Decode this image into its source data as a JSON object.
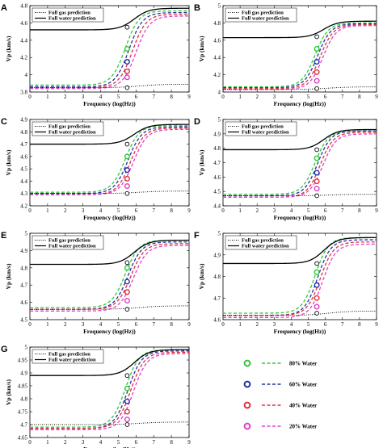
{
  "shared_legend": {
    "items": [
      {
        "label": "80% Water",
        "color": "#2dc83a"
      },
      {
        "label": "60% Water",
        "color": "#2430a8"
      },
      {
        "label": "40% Water",
        "color": "#e0303a"
      },
      {
        "label": "20% Water",
        "color": "#e040c8"
      }
    ]
  },
  "chart_data": [
    {
      "type": "line",
      "panel": "A",
      "xlabel": "Frequency (log(Hz))",
      "ylabel": "V_p (km/s)",
      "xlim": [
        0,
        9
      ],
      "ylim": [
        3.8,
        4.8
      ],
      "xticks": [
        "0",
        "1",
        "2",
        "3",
        "4",
        "5",
        "6",
        "7",
        "8",
        "9"
      ],
      "yticks": [
        "3.8",
        "4",
        "4.2",
        "4.4",
        "4.6",
        "4.8"
      ],
      "legend": [
        "Full gas prediction",
        "Full water prediction"
      ],
      "gas": {
        "low": 3.85,
        "high": 3.89
      },
      "water": {
        "low": 4.52,
        "high": 4.77
      },
      "series": [
        {
          "name": "80% Water",
          "low": 3.88,
          "high": 4.74,
          "mid": 5.4,
          "marker_y": 4.3
        },
        {
          "name": "60% Water",
          "low": 3.86,
          "high": 4.72,
          "mid": 5.6,
          "marker_y": 4.15
        },
        {
          "name": "40% Water",
          "low": 3.85,
          "high": 4.7,
          "mid": 5.8,
          "marker_y": 4.04
        },
        {
          "name": "20% Water",
          "low": 3.84,
          "high": 4.68,
          "mid": 6.0,
          "marker_y": 3.97
        }
      ],
      "markers_x": 5.5,
      "marker_gas": 3.85,
      "marker_water": 4.55
    },
    {
      "type": "line",
      "panel": "B",
      "xlabel": "Frequency (log(Hz))",
      "ylabel": "V_p (km/s)",
      "xlim": [
        0,
        9
      ],
      "ylim": [
        4,
        5
      ],
      "xticks": [
        "0",
        "1",
        "2",
        "3",
        "4",
        "5",
        "6",
        "7",
        "8",
        "9"
      ],
      "yticks": [
        "4",
        "4.2",
        "4.4",
        "4.6",
        "4.8",
        "5"
      ],
      "legend": [
        "Full gas prediction",
        "Full water prediction"
      ],
      "gas": {
        "low": 4.03,
        "high": 4.06
      },
      "water": {
        "low": 4.63,
        "high": 4.82
      },
      "series": [
        {
          "name": "80% Water",
          "low": 4.06,
          "high": 4.8,
          "mid": 5.4,
          "marker_y": 4.5
        },
        {
          "name": "60% Water",
          "low": 4.05,
          "high": 4.79,
          "mid": 5.55,
          "marker_y": 4.35
        },
        {
          "name": "40% Water",
          "low": 4.04,
          "high": 4.78,
          "mid": 5.7,
          "marker_y": 4.23
        },
        {
          "name": "20% Water",
          "low": 4.03,
          "high": 4.77,
          "mid": 5.85,
          "marker_y": 4.13
        }
      ],
      "markers_x": 5.5,
      "marker_gas": 4.04,
      "marker_water": 4.64
    },
    {
      "type": "line",
      "panel": "C",
      "xlabel": "Frequency (log(Hz))",
      "ylabel": "V_p (km/s)",
      "xlim": [
        0,
        9
      ],
      "ylim": [
        4.2,
        4.9
      ],
      "xticks": [
        "0",
        "1",
        "2",
        "3",
        "4",
        "5",
        "6",
        "7",
        "8",
        "9"
      ],
      "yticks": [
        "4.2",
        "4.3",
        "4.4",
        "4.5",
        "4.6",
        "4.7",
        "4.8",
        "4.9"
      ],
      "legend": [
        "Full gas prediction",
        "Full water prediction"
      ],
      "gas": {
        "low": 4.3,
        "high": 4.32
      },
      "water": {
        "low": 4.7,
        "high": 4.86
      },
      "series": [
        {
          "name": "80% Water",
          "low": 4.31,
          "high": 4.85,
          "mid": 5.4,
          "marker_y": 4.6
        },
        {
          "name": "60% Water",
          "low": 4.3,
          "high": 4.84,
          "mid": 5.55,
          "marker_y": 4.49
        },
        {
          "name": "40% Water",
          "low": 4.29,
          "high": 4.83,
          "mid": 5.7,
          "marker_y": 4.42
        },
        {
          "name": "20% Water",
          "low": 4.29,
          "high": 4.82,
          "mid": 5.85,
          "marker_y": 4.36
        }
      ],
      "markers_x": 5.5,
      "marker_gas": 4.3,
      "marker_water": 4.7
    },
    {
      "type": "line",
      "panel": "D",
      "xlabel": "Frequency (log(Hz))",
      "ylabel": "V_p (km/s)",
      "xlim": [
        0,
        9
      ],
      "ylim": [
        4.4,
        5
      ],
      "xticks": [
        "0",
        "1",
        "2",
        "3",
        "4",
        "5",
        "6",
        "7",
        "8",
        "9"
      ],
      "yticks": [
        "4.4",
        "4.5",
        "4.6",
        "4.7",
        "4.8",
        "4.9",
        "5"
      ],
      "legend": [
        "Full gas prediction",
        "Full water prediction"
      ],
      "gas": {
        "low": 4.47,
        "high": 4.48
      },
      "water": {
        "low": 4.79,
        "high": 4.93
      },
      "series": [
        {
          "name": "80% Water",
          "low": 4.48,
          "high": 4.92,
          "mid": 5.4,
          "marker_y": 4.73
        },
        {
          "name": "60% Water",
          "low": 4.47,
          "high": 4.92,
          "mid": 5.55,
          "marker_y": 4.63
        },
        {
          "name": "40% Water",
          "low": 4.46,
          "high": 4.91,
          "mid": 5.7,
          "marker_y": 4.57
        },
        {
          "name": "20% Water",
          "low": 4.46,
          "high": 4.9,
          "mid": 5.85,
          "marker_y": 4.52
        }
      ],
      "markers_x": 5.5,
      "marker_gas": 4.47,
      "marker_water": 4.79
    },
    {
      "type": "line",
      "panel": "E",
      "xlabel": "Frequency (log(Hz))",
      "ylabel": "V_p (km/s)",
      "xlim": [
        0,
        9
      ],
      "ylim": [
        4.5,
        5
      ],
      "xticks": [
        "0",
        "1",
        "2",
        "3",
        "4",
        "5",
        "6",
        "7",
        "8",
        "9"
      ],
      "yticks": [
        "4.5",
        "4.6",
        "4.7",
        "4.8",
        "4.9",
        "5"
      ],
      "legend": [
        "Full gas prediction",
        "Full water prediction"
      ],
      "gas": {
        "low": 4.56,
        "high": 4.58
      },
      "water": {
        "low": 4.82,
        "high": 4.96
      },
      "series": [
        {
          "name": "80% Water",
          "low": 4.57,
          "high": 4.96,
          "mid": 5.4,
          "marker_y": 4.8
        },
        {
          "name": "60% Water",
          "low": 4.56,
          "high": 4.95,
          "mid": 5.55,
          "marker_y": 4.72
        },
        {
          "name": "40% Water",
          "low": 4.56,
          "high": 4.94,
          "mid": 5.7,
          "marker_y": 4.66
        },
        {
          "name": "20% Water",
          "low": 4.55,
          "high": 4.93,
          "mid": 5.85,
          "marker_y": 4.61
        }
      ],
      "markers_x": 5.5,
      "marker_gas": 4.56,
      "marker_water": 4.83
    },
    {
      "type": "line",
      "panel": "F",
      "xlabel": "Frequency (log(Hz))",
      "ylabel": "V_p (km/s)",
      "xlim": [
        0,
        9
      ],
      "ylim": [
        4.6,
        5
      ],
      "xticks": [
        "0",
        "1",
        "2",
        "3",
        "4",
        "5",
        "6",
        "7",
        "8",
        "9"
      ],
      "yticks": [
        "4.6",
        "4.7",
        "4.8",
        "4.9",
        "5"
      ],
      "legend": [
        "Full gas prediction",
        "Full water prediction"
      ],
      "gas": {
        "low": 4.62,
        "high": 4.64
      },
      "water": {
        "low": 4.86,
        "high": 4.98
      },
      "series": [
        {
          "name": "80% Water",
          "low": 4.63,
          "high": 4.98,
          "mid": 5.4,
          "marker_y": 4.82
        },
        {
          "name": "60% Water",
          "low": 4.62,
          "high": 4.97,
          "mid": 5.55,
          "marker_y": 4.76
        },
        {
          "name": "40% Water",
          "low": 4.62,
          "high": 4.96,
          "mid": 5.7,
          "marker_y": 4.7
        },
        {
          "name": "20% Water",
          "low": 4.61,
          "high": 4.95,
          "mid": 5.85,
          "marker_y": 4.66
        }
      ],
      "markers_x": 5.5,
      "marker_gas": 4.63,
      "marker_water": 4.86
    },
    {
      "type": "line",
      "panel": "G",
      "xlabel": "Frequency (log(Hz))",
      "ylabel": "V_p (km/s)",
      "xlim": [
        0,
        9
      ],
      "ylim": [
        4.65,
        5
      ],
      "xticks": [
        "0",
        "1",
        "2",
        "3",
        "4",
        "5",
        "6",
        "7",
        "8",
        "9"
      ],
      "yticks": [
        "4.65",
        "4.7",
        "4.75",
        "4.8",
        "4.85",
        "4.9",
        "4.95",
        "5"
      ],
      "legend": [
        "Full gas prediction",
        "Full water prediction"
      ],
      "gas": {
        "low": 4.7,
        "high": 4.71
      },
      "water": {
        "low": 4.89,
        "high": 4.99
      },
      "series": [
        {
          "name": "80% Water",
          "low": 4.69,
          "high": 4.99,
          "mid": 5.4,
          "marker_y": 4.84
        },
        {
          "name": "60% Water",
          "low": 4.685,
          "high": 4.985,
          "mid": 5.55,
          "marker_y": 4.79
        },
        {
          "name": "40% Water",
          "low": 4.685,
          "high": 4.98,
          "mid": 5.7,
          "marker_y": 4.75
        },
        {
          "name": "20% Water",
          "low": 4.68,
          "high": 4.975,
          "mid": 5.85,
          "marker_y": 4.72
        }
      ],
      "markers_x": 5.5,
      "marker_gas": 4.7,
      "marker_water": 4.89
    }
  ]
}
